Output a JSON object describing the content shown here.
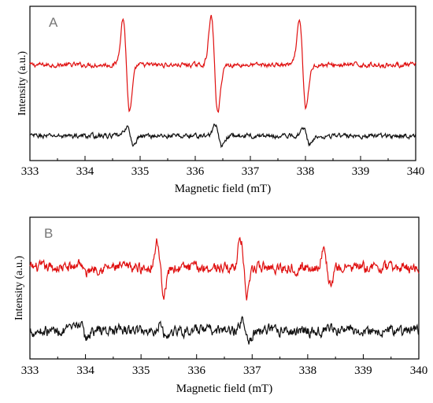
{
  "chart_data": [
    {
      "type": "line",
      "panel_label": "A",
      "xlabel": "Magnetic field (mT)",
      "ylabel": "Intensity (a.u.)",
      "xlim": [
        333,
        340
      ],
      "x_ticks": [
        "333",
        "334",
        "335",
        "336",
        "337",
        "338",
        "339",
        "340"
      ],
      "grid": false,
      "baseline_noise": 0.12,
      "series": [
        {
          "color": "#e01010",
          "offset": 6.2,
          "peaks": [
            {
              "x": 334.75,
              "amplitude": 3.0
            },
            {
              "x": 336.35,
              "amplitude": 3.1
            },
            {
              "x": 337.95,
              "amplitude": 2.8
            }
          ]
        },
        {
          "color": "#111111",
          "offset": 1.6,
          "peaks": [
            {
              "x": 334.82,
              "amplitude": 0.6
            },
            {
              "x": 336.42,
              "amplitude": 0.7
            },
            {
              "x": 338.02,
              "amplitude": 0.6
            }
          ]
        }
      ]
    },
    {
      "type": "line",
      "panel_label": "B",
      "xlabel": "Magnetic field (mT)",
      "ylabel": "Intensity (a.u.)",
      "xlim": [
        333,
        340
      ],
      "x_ticks": [
        "333",
        "334",
        "335",
        "336",
        "337",
        "338",
        "339",
        "340"
      ],
      "grid": false,
      "baseline_noise": 0.28,
      "series": [
        {
          "color": "#e01010",
          "offset": 5.8,
          "peaks": [
            {
              "x": 335.35,
              "amplitude": 1.6
            },
            {
              "x": 336.85,
              "amplitude": 1.8
            },
            {
              "x": 338.35,
              "amplitude": 1.1
            },
            {
              "x": 333.95,
              "amplitude": 0.4
            }
          ]
        },
        {
          "color": "#111111",
          "offset": 1.8,
          "peaks": [
            {
              "x": 333.95,
              "amplitude": 0.5
            },
            {
              "x": 335.4,
              "amplitude": 0.4
            },
            {
              "x": 336.9,
              "amplitude": 0.7
            }
          ]
        }
      ]
    }
  ]
}
